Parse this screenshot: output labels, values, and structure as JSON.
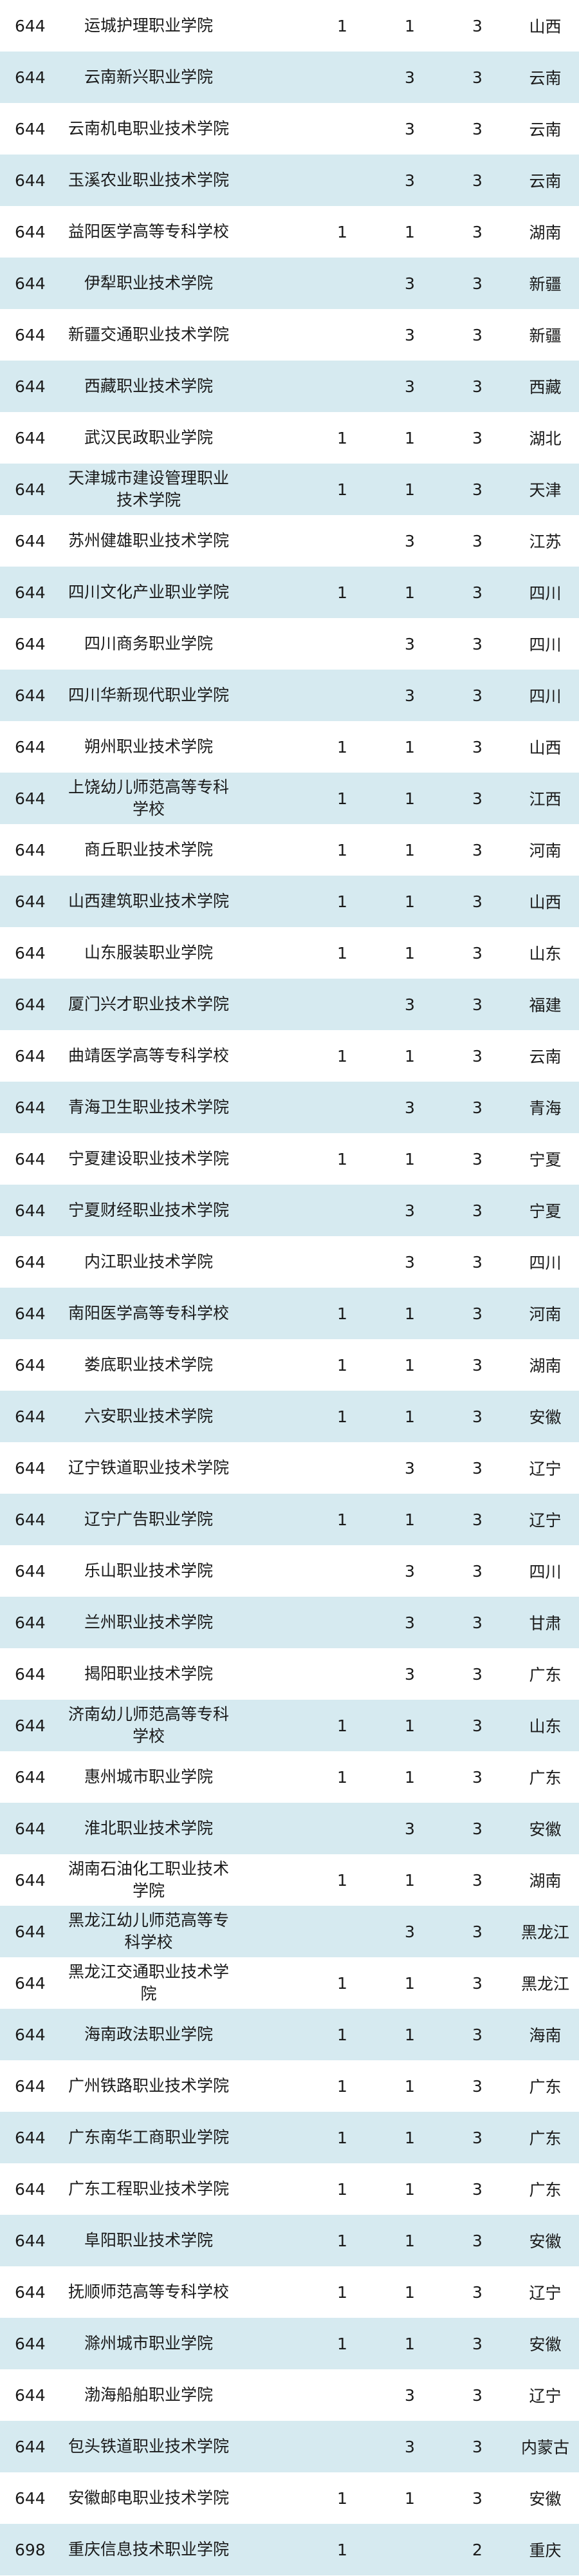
{
  "rows": [
    [
      "644",
      "运城护理职业学院",
      "1",
      "1",
      "3",
      "山西"
    ],
    [
      "644",
      "云南新兴职业学院",
      "",
      "3",
      "3",
      "云南"
    ],
    [
      "644",
      "云南机电职业技术学院",
      "",
      "3",
      "3",
      "云南"
    ],
    [
      "644",
      "玉溪农业职业技术学院",
      "",
      "3",
      "3",
      "云南"
    ],
    [
      "644",
      "益阳医学高等专科学校",
      "1",
      "1",
      "3",
      "湖南"
    ],
    [
      "644",
      "伊犁职业技术学院",
      "",
      "3",
      "3",
      "新疆"
    ],
    [
      "644",
      "新疆交通职业技术学院",
      "",
      "3",
      "3",
      "新疆"
    ],
    [
      "644",
      "西藏职业技术学院",
      "",
      "3",
      "3",
      "西藏"
    ],
    [
      "644",
      "武汉民政职业学院",
      "1",
      "1",
      "3",
      "湖北"
    ],
    [
      "644",
      "天津城市建设管理职业技术学院",
      "1",
      "1",
      "3",
      "天津"
    ],
    [
      "644",
      "苏州健雄职业技术学院",
      "",
      "3",
      "3",
      "江苏"
    ],
    [
      "644",
      "四川文化产业职业学院",
      "1",
      "1",
      "3",
      "四川"
    ],
    [
      "644",
      "四川商务职业学院",
      "",
      "3",
      "3",
      "四川"
    ],
    [
      "644",
      "四川华新现代职业学院",
      "",
      "3",
      "3",
      "四川"
    ],
    [
      "644",
      "朔州职业技术学院",
      "1",
      "1",
      "3",
      "山西"
    ],
    [
      "644",
      "上饶幼儿师范高等专科学校",
      "1",
      "1",
      "3",
      "江西"
    ],
    [
      "644",
      "商丘职业技术学院",
      "1",
      "1",
      "3",
      "河南"
    ],
    [
      "644",
      "山西建筑职业技术学院",
      "1",
      "1",
      "3",
      "山西"
    ],
    [
      "644",
      "山东服装职业学院",
      "1",
      "1",
      "3",
      "山东"
    ],
    [
      "644",
      "厦门兴才职业技术学院",
      "",
      "3",
      "3",
      "福建"
    ],
    [
      "644",
      "曲靖医学高等专科学校",
      "1",
      "1",
      "3",
      "云南"
    ],
    [
      "644",
      "青海卫生职业技术学院",
      "",
      "3",
      "3",
      "青海"
    ],
    [
      "644",
      "宁夏建设职业技术学院",
      "1",
      "1",
      "3",
      "宁夏"
    ],
    [
      "644",
      "宁夏财经职业技术学院",
      "",
      "3",
      "3",
      "宁夏"
    ],
    [
      "644",
      "内江职业技术学院",
      "",
      "3",
      "3",
      "四川"
    ],
    [
      "644",
      "南阳医学高等专科学校",
      "1",
      "1",
      "3",
      "河南"
    ],
    [
      "644",
      "娄底职业技术学院",
      "1",
      "1",
      "3",
      "湖南"
    ],
    [
      "644",
      "六安职业技术学院",
      "1",
      "1",
      "3",
      "安徽"
    ],
    [
      "644",
      "辽宁铁道职业技术学院",
      "",
      "3",
      "3",
      "辽宁"
    ],
    [
      "644",
      "辽宁广告职业学院",
      "1",
      "1",
      "3",
      "辽宁"
    ],
    [
      "644",
      "乐山职业技术学院",
      "",
      "3",
      "3",
      "四川"
    ],
    [
      "644",
      "兰州职业技术学院",
      "",
      "3",
      "3",
      "甘肃"
    ],
    [
      "644",
      "揭阳职业技术学院",
      "",
      "3",
      "3",
      "广东"
    ],
    [
      "644",
      "济南幼儿师范高等专科学校",
      "1",
      "1",
      "3",
      "山东"
    ],
    [
      "644",
      "惠州城市职业学院",
      "1",
      "1",
      "3",
      "广东"
    ],
    [
      "644",
      "淮北职业技术学院",
      "",
      "3",
      "3",
      "安徽"
    ],
    [
      "644",
      "湖南石油化工职业技术学院",
      "1",
      "1",
      "3",
      "湖南"
    ],
    [
      "644",
      "黑龙江幼儿师范高等专科学校",
      "",
      "3",
      "3",
      "黑龙江"
    ],
    [
      "644",
      "黑龙江交通职业技术学院",
      "1",
      "1",
      "3",
      "黑龙江"
    ],
    [
      "644",
      "海南政法职业学院",
      "1",
      "1",
      "3",
      "海南"
    ],
    [
      "644",
      "广州铁路职业技术学院",
      "1",
      "1",
      "3",
      "广东"
    ],
    [
      "644",
      "广东南华工商职业学院",
      "1",
      "1",
      "3",
      "广东"
    ],
    [
      "644",
      "广东工程职业技术学院",
      "1",
      "1",
      "3",
      "广东"
    ],
    [
      "644",
      "阜阳职业技术学院",
      "1",
      "1",
      "3",
      "安徽"
    ],
    [
      "644",
      "抚顺师范高等专科学校",
      "1",
      "1",
      "3",
      "辽宁"
    ],
    [
      "644",
      "滁州城市职业学院",
      "1",
      "1",
      "3",
      "安徽"
    ],
    [
      "644",
      "渤海船舶职业学院",
      "",
      "3",
      "3",
      "辽宁"
    ],
    [
      "644",
      "包头铁道职业技术学院",
      "",
      "3",
      "3",
      "内蒙古"
    ],
    [
      "644",
      "安徽邮电职业技术学院",
      "1",
      "1",
      "3",
      "安徽"
    ],
    [
      "698",
      "重庆信息技术职业学院",
      "1",
      "",
      "2",
      "重庆"
    ]
  ],
  "colors": {
    "stripe": "#d6eaf0",
    "text": "#1a1a1a"
  }
}
